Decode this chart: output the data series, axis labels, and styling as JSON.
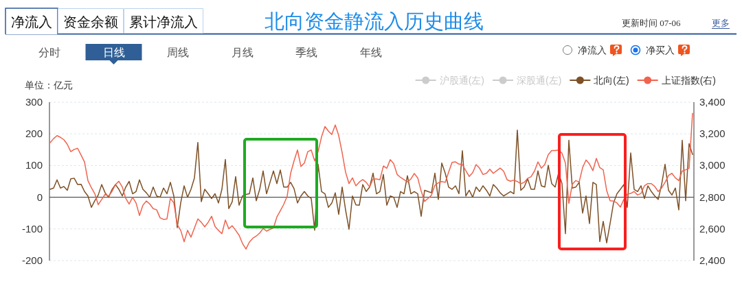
{
  "chart_data": {
    "type": "line",
    "title": "北向资金静流入历史曲线",
    "ylabel": "单位：亿元",
    "annotations": [
      "净流入",
      "资金余额",
      "累计净流入",
      "更新时间 07-06",
      "更多",
      "分时",
      "日线",
      "周线",
      "月线",
      "季线",
      "年线",
      "净流入",
      "净买入"
    ],
    "categories": [
      null,
      null,
      null,
      null,
      null,
      null,
      null,
      null,
      null,
      null,
      null,
      null,
      null,
      null,
      null,
      null,
      null,
      null,
      null,
      null,
      null,
      null,
      null,
      null,
      null,
      null,
      null,
      null,
      null,
      null,
      null,
      null,
      null,
      null,
      null,
      null,
      null,
      null,
      null,
      null,
      null,
      null,
      null,
      null,
      null,
      null,
      null,
      null,
      null,
      null,
      null,
      null,
      null,
      null,
      null,
      null,
      null,
      null,
      null,
      null,
      null,
      null,
      null,
      null,
      null,
      null,
      null,
      null,
      null,
      null,
      null,
      null,
      null,
      null,
      null,
      null,
      null,
      null,
      null,
      null,
      null,
      null,
      null,
      null,
      null,
      null,
      null,
      null,
      null,
      null,
      null,
      null,
      null,
      null,
      null,
      null,
      null,
      null,
      null,
      null,
      null,
      null,
      null,
      null,
      null,
      null,
      null,
      null,
      null,
      null,
      null,
      null,
      null,
      null,
      null,
      null,
      null,
      null,
      null,
      null,
      null,
      null,
      null,
      null,
      null,
      null,
      null,
      null,
      null,
      null,
      null,
      null,
      null,
      null,
      null,
      null,
      null,
      null,
      null,
      null,
      null,
      null,
      null,
      null,
      null,
      null,
      null,
      null,
      null,
      null,
      null,
      null,
      null,
      null,
      null,
      null,
      null,
      null,
      null,
      null,
      null,
      null,
      null,
      null,
      null,
      null,
      null,
      null,
      null,
      null,
      null,
      null,
      null,
      null,
      null,
      null,
      null,
      null,
      null,
      null,
      null,
      null,
      null,
      null,
      null,
      null,
      null,
      null
    ],
    "series": [
      {
        "name": "沪股通(左)",
        "color": "#cccccc",
        "values": [
          null,
          null,
          null,
          null,
          null,
          null,
          null,
          null,
          null,
          null,
          null,
          null,
          null,
          null,
          null,
          null,
          null,
          null,
          null,
          null,
          null,
          null,
          null,
          null,
          null,
          null,
          null,
          null,
          null,
          null,
          null,
          null,
          null,
          null,
          null,
          null,
          null,
          null,
          null,
          null,
          null,
          null,
          null,
          null,
          null,
          null,
          null,
          null,
          null,
          null,
          null,
          null,
          null,
          null,
          null,
          null,
          null,
          null,
          null,
          null,
          null,
          null,
          null,
          null,
          null,
          null,
          null,
          null,
          null,
          null,
          null,
          null,
          null,
          null,
          null,
          null,
          null,
          null,
          null,
          null,
          null,
          null,
          null,
          null,
          null,
          null,
          null,
          null,
          null,
          null,
          null,
          null,
          null,
          null,
          null,
          null,
          null,
          null,
          null,
          null,
          null,
          null,
          null,
          null,
          null,
          null,
          null,
          null,
          null,
          null,
          null,
          null,
          null,
          null,
          null,
          null,
          null,
          null,
          null,
          null,
          null,
          null,
          null,
          null,
          null,
          null,
          null,
          null,
          null,
          null,
          null,
          null,
          null,
          null,
          null,
          null,
          null,
          null,
          null,
          null,
          null,
          null,
          null,
          null,
          null,
          null,
          null,
          null,
          null,
          null,
          null,
          null,
          null,
          null,
          null,
          null,
          null,
          null,
          null,
          null,
          null,
          null,
          null,
          null,
          null,
          null,
          null,
          null,
          null,
          null,
          null,
          null,
          null,
          null,
          null,
          null,
          null,
          null,
          null,
          null,
          null,
          null,
          null,
          null,
          null,
          null,
          null,
          null
        ]
      },
      {
        "name": "深股通(左)",
        "color": "#cccccc",
        "values": [
          null,
          null,
          null,
          null,
          null,
          null,
          null,
          null,
          null,
          null,
          null,
          null,
          null,
          null,
          null,
          null,
          null,
          null,
          null,
          null,
          null,
          null,
          null,
          null,
          null,
          null,
          null,
          null,
          null,
          null,
          null,
          null,
          null,
          null,
          null,
          null,
          null,
          null,
          null,
          null,
          null,
          null,
          null,
          null,
          null,
          null,
          null,
          null,
          null,
          null,
          null,
          null,
          null,
          null,
          null,
          null,
          null,
          null,
          null,
          null,
          null,
          null,
          null,
          null,
          null,
          null,
          null,
          null,
          null,
          null,
          null,
          null,
          null,
          null,
          null,
          null,
          null,
          null,
          null,
          null,
          null,
          null,
          null,
          null,
          null,
          null,
          null,
          null,
          null,
          null,
          null,
          null,
          null,
          null,
          null,
          null,
          null,
          null,
          null,
          null,
          null,
          null,
          null,
          null,
          null,
          null,
          null,
          null,
          null,
          null,
          null,
          null,
          null,
          null,
          null,
          null,
          null,
          null,
          null,
          null,
          null,
          null,
          null,
          null,
          null,
          null,
          null,
          null,
          null,
          null,
          null,
          null,
          null,
          null,
          null,
          null,
          null,
          null,
          null,
          null,
          null,
          null,
          null,
          null,
          null,
          null,
          null,
          null,
          null,
          null,
          null,
          null,
          null,
          null,
          null,
          null,
          null,
          null,
          null,
          null,
          null,
          null,
          null,
          null,
          null,
          null,
          null,
          null,
          null,
          null,
          null,
          null,
          null,
          null,
          null,
          null,
          null,
          null,
          null,
          null,
          null,
          null,
          null,
          null,
          null,
          null,
          null,
          null
        ]
      },
      {
        "name": "北向(左)",
        "color": "#7d5026",
        "values": [
          25,
          29,
          55,
          29,
          34,
          22,
          58,
          60,
          40,
          41,
          18,
          4,
          -32,
          -11,
          7,
          40,
          14,
          0,
          24,
          40,
          25,
          4,
          32,
          50,
          11,
          18,
          55,
          25,
          14,
          0,
          32,
          4,
          0,
          29,
          11,
          47,
          4,
          -96,
          -18,
          36,
          0,
          25,
          61,
          173,
          -14,
          25,
          11,
          -4,
          11,
          -18,
          25,
          119,
          -36,
          -14,
          65,
          -25,
          4,
          9,
          11,
          61,
          -11,
          25,
          83,
          11,
          47,
          83,
          43,
          86,
          32,
          32,
          47,
          27,
          -18,
          4,
          18,
          4,
          -4,
          -104,
          104,
          18,
          11,
          -32,
          -18,
          14,
          -54,
          32,
          -40,
          -101,
          4,
          -24,
          -25,
          40,
          18,
          32,
          76,
          11,
          18,
          72,
          -25,
          4,
          0,
          -32,
          18,
          11,
          68,
          11,
          18,
          11,
          -60,
          22,
          18,
          14,
          76,
          -7,
          108,
          76,
          32,
          25,
          36,
          11,
          147,
          4,
          22,
          0,
          32,
          18,
          36,
          22,
          4,
          40,
          29,
          14,
          4,
          11,
          18,
          11,
          212,
          22,
          32,
          58,
          25,
          25,
          83,
          36,
          32,
          101,
          43,
          32,
          76,
          43,
          -115,
          180,
          29,
          32,
          47,
          -50,
          4,
          -83,
          47,
          40,
          -140,
          -76,
          -144,
          -83,
          -18,
          11,
          25,
          40,
          -32,
          140,
          25,
          18,
          36,
          -4,
          36,
          18,
          4,
          -7,
          40,
          104,
          22,
          7,
          29,
          -40,
          180,
          -11,
          169,
          135
        ]
      },
      {
        "name": "上证指数(右)",
        "color": "#f0634e",
        "axis": "y2",
        "values": [
          3145,
          3170,
          3189,
          3178,
          3163,
          3134,
          3088,
          3102,
          3109,
          3066,
          3023,
          2905,
          2860,
          2822,
          2753,
          2786,
          2819,
          2807,
          2836,
          2879,
          2901,
          2865,
          2793,
          2757,
          2800,
          2764,
          2685,
          2750,
          2776,
          2757,
          2728,
          2721,
          2670,
          2660,
          2663,
          2793,
          2764,
          2627,
          2591,
          2519,
          2591,
          2548,
          2606,
          2663,
          2642,
          2613,
          2642,
          2680,
          2615,
          2591,
          2570,
          2656,
          2601,
          2620,
          2591,
          2560,
          2508,
          2473,
          2517,
          2541,
          2555,
          2574,
          2603,
          2586,
          2597,
          2606,
          2675,
          2714,
          2755,
          2807,
          2951,
          3030,
          3098,
          2994,
          3016,
          3088,
          3098,
          3030,
          3088,
          3181,
          3246,
          3217,
          3196,
          3256,
          3189,
          3081,
          2958,
          2886,
          2922,
          2872,
          2896,
          2911,
          2894,
          2865,
          2915,
          2915,
          2911,
          2997,
          2983,
          3037,
          3013,
          2944,
          2925,
          2911,
          2896,
          2915,
          2950,
          2922,
          2839,
          2774,
          2793,
          2813,
          2876,
          2891,
          2899,
          2894,
          2958,
          3020,
          3023,
          3009,
          3006,
          2968,
          2931,
          2955,
          3006,
          2983,
          2944,
          2951,
          2977,
          2951,
          2968,
          2984,
          2965,
          2911,
          2901,
          2908,
          2899,
          2885,
          2894,
          2919,
          2930,
          2965,
          3023,
          2983,
          3007,
          3069,
          3095,
          3095,
          3098,
          3078,
          3016,
          2761,
          2882,
          2905,
          2896,
          2987,
          3035,
          3009,
          2968,
          3045,
          2987,
          2973,
          2843,
          2778,
          2776,
          2764,
          2738,
          2786,
          2819,
          2824,
          2836,
          2814,
          2824,
          2872,
          2886,
          2886,
          2868,
          2836,
          2858,
          2894,
          2937,
          2951,
          2922,
          2905,
          2965,
          2973,
          2983,
          3330
        ]
      }
    ],
    "ylim": [
      -200,
      300
    ],
    "yticks": [
      -200,
      -100,
      0,
      100,
      200,
      300
    ],
    "y2lim": [
      2400,
      3400
    ],
    "y2ticks": [
      {
        "value": 2400,
        "label": "2,400"
      },
      {
        "value": 2600,
        "label": "2,600"
      },
      {
        "value": 2800,
        "label": "2,800"
      },
      {
        "value": 3000,
        "label": "3,000"
      },
      {
        "value": 3200,
        "label": "3,200"
      },
      {
        "value": 3400,
        "label": "3,400"
      }
    ],
    "grid": "y",
    "legend": "top right"
  }
}
